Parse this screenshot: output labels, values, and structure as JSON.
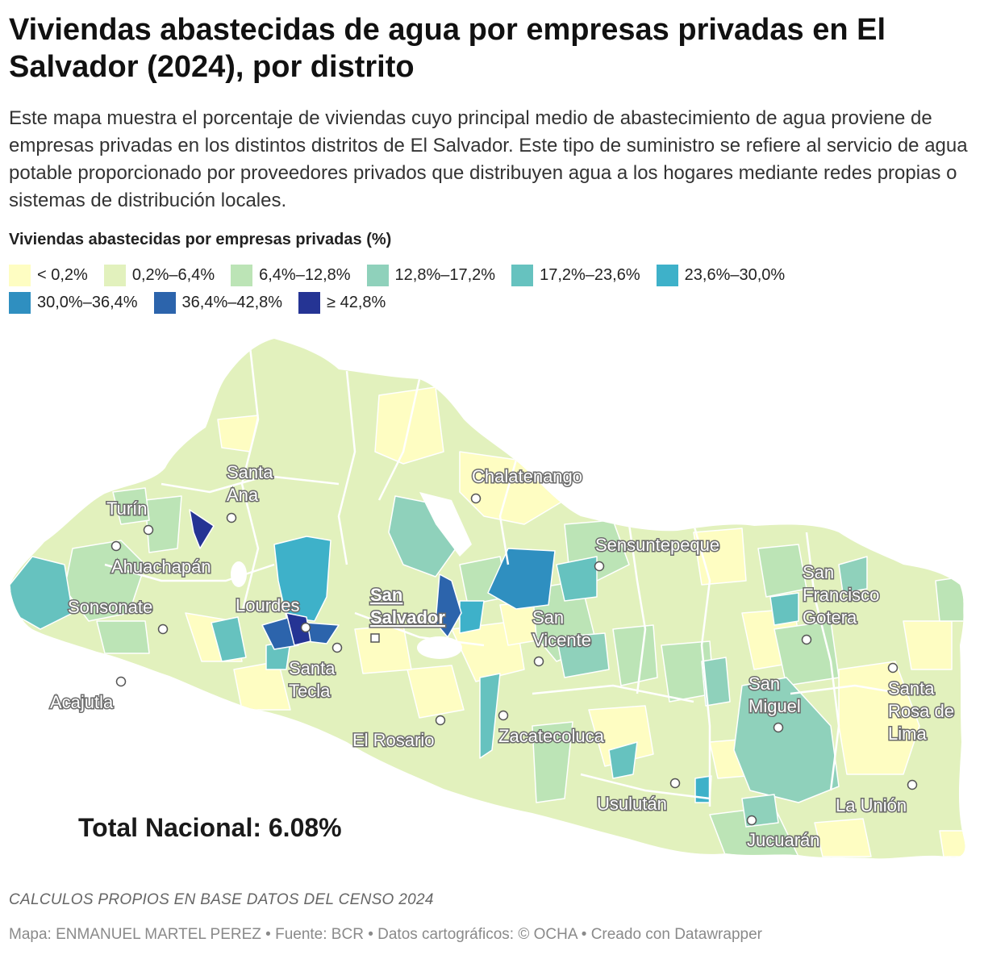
{
  "header": {
    "title": "Viviendas abastecidas de agua por empresas privadas en El Salvador (2024), por distrito",
    "description": "Este mapa muestra el porcentaje de viviendas cuyo principal medio de abastecimiento de agua proviene de empresas privadas en los distintos distritos de El Salvador. Este tipo de suministro se refiere al servicio de agua potable proporcionado por proveedores privados que distribuyen agua a los hogares mediante redes propias o sistemas de distribución locales."
  },
  "legend": {
    "title": "Viviendas abastecidas por empresas privadas (%)",
    "bins": [
      {
        "label": "< 0,2%",
        "color": "#fefdc2"
      },
      {
        "label": "0,2%–6,4%",
        "color": "#e2f1bd"
      },
      {
        "label": "6,4%–12,8%",
        "color": "#bce4b6"
      },
      {
        "label": "12,8%–17,2%",
        "color": "#8fd1bb"
      },
      {
        "label": "17,2%–23,6%",
        "color": "#66c2bf"
      },
      {
        "label": "23,6%–30,0%",
        "color": "#3eb1c9"
      },
      {
        "label": "30,0%–36,4%",
        "color": "#2f8fc0"
      },
      {
        "label": "36,4%–42,8%",
        "color": "#2c64ac"
      },
      {
        "label": "≥ 42,8%",
        "color": "#253494"
      }
    ]
  },
  "map": {
    "cities": [
      {
        "name": "Santa Ana"
      },
      {
        "name": "Turín"
      },
      {
        "name": "Ahuachapán"
      },
      {
        "name": "Sonsonate"
      },
      {
        "name": "Lourdes"
      },
      {
        "name": "Acajutla"
      },
      {
        "name": "Santa Tecla"
      },
      {
        "name": "San Salvador",
        "capital": true
      },
      {
        "name": "Chalatenango"
      },
      {
        "name": "Sensuntepeque"
      },
      {
        "name": "San Vicente"
      },
      {
        "name": "El Rosario"
      },
      {
        "name": "Zacatecoluca"
      },
      {
        "name": "Usulután"
      },
      {
        "name": "San Francisco Gotera"
      },
      {
        "name": "San Miguel"
      },
      {
        "name": "Santa Rosa de Lima"
      },
      {
        "name": "La Unión"
      },
      {
        "name": "Jucuarán"
      }
    ]
  },
  "total": {
    "text": "Total Nacional: 6.08%"
  },
  "footer": {
    "note": "CALCULOS PROPIOS EN BASE DATOS DEL CENSO 2024",
    "credits": "Mapa: ENMANUEL MARTEL PEREZ • Fuente: BCR • Datos cartográficos: © OCHA  • Creado con Datawrapper"
  }
}
